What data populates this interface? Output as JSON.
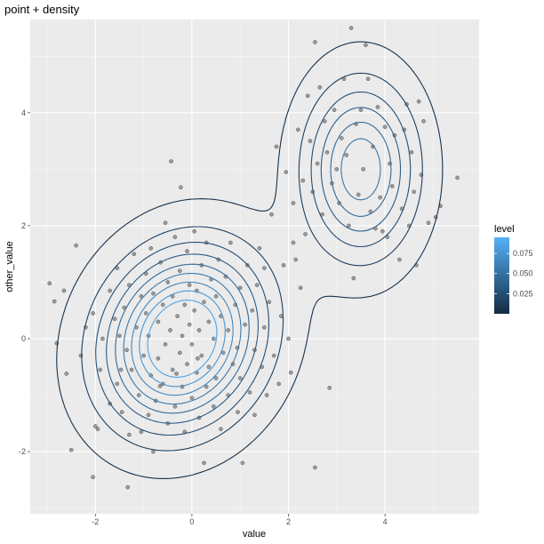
{
  "chart_data": {
    "type": "scatter",
    "title": "point + density",
    "xlabel": "value",
    "ylabel": "other_value",
    "xlim": [
      -3.35,
      5.95
    ],
    "ylim": [
      -3.1,
      5.65
    ],
    "xticks": [
      -2,
      0,
      2,
      4
    ],
    "yticks": [
      -2,
      0,
      2,
      4
    ],
    "tick_labels": {
      "x": [
        "-2",
        "0",
        "2",
        "4"
      ],
      "y": [
        "-2",
        "0",
        "2",
        "4"
      ]
    },
    "grid": true,
    "background": "#ebebeb",
    "point_color": "#7f7f7f",
    "legend": {
      "title": "level",
      "position": "right",
      "low_color": "#132b43",
      "high_color": "#56b1f7",
      "range": [
        0.0,
        0.095
      ],
      "ticks": [
        0.025,
        0.05,
        0.075
      ],
      "tick_labels": [
        "0.025",
        "0.050",
        "0.075"
      ]
    },
    "series": [
      {
        "type": "points",
        "points": [
          [
            -2.95,
            0.98
          ],
          [
            -2.85,
            0.66
          ],
          [
            -2.8,
            -0.08
          ],
          [
            -2.65,
            0.85
          ],
          [
            -2.6,
            -0.62
          ],
          [
            -2.4,
            1.65
          ],
          [
            -2.5,
            -1.97
          ],
          [
            -2.05,
            -2.45
          ],
          [
            -2.0,
            -1.55
          ],
          [
            -1.95,
            -1.6
          ],
          [
            -2.3,
            -0.3
          ],
          [
            -2.2,
            0.2
          ],
          [
            -2.05,
            0.45
          ],
          [
            -1.9,
            -0.55
          ],
          [
            -1.85,
            0.0
          ],
          [
            -1.7,
            0.85
          ],
          [
            -1.7,
            -1.15
          ],
          [
            -1.6,
            0.35
          ],
          [
            -1.55,
            -0.8
          ],
          [
            -1.55,
            1.25
          ],
          [
            -1.5,
            0.05
          ],
          [
            -1.45,
            -1.3
          ],
          [
            -1.4,
            0.55
          ],
          [
            -1.35,
            -0.2
          ],
          [
            -1.3,
            -1.7
          ],
          [
            -1.3,
            0.95
          ],
          [
            -1.25,
            -0.55
          ],
          [
            -1.2,
            1.5
          ],
          [
            -1.15,
            0.2
          ],
          [
            -1.1,
            -1.0
          ],
          [
            -1.05,
            0.75
          ],
          [
            -1.05,
            -1.65
          ],
          [
            -1.0,
            -0.3
          ],
          [
            -0.95,
            1.15
          ],
          [
            -0.95,
            0.45
          ],
          [
            -0.9,
            -1.35
          ],
          [
            -0.9,
            0.05
          ],
          [
            -0.85,
            1.6
          ],
          [
            -0.85,
            -0.65
          ],
          [
            -0.8,
            0.8
          ],
          [
            -0.8,
            -2.0
          ],
          [
            -0.75,
            -1.1
          ],
          [
            -0.7,
            0.3
          ],
          [
            -0.7,
            -0.35
          ],
          [
            -0.65,
            1.35
          ],
          [
            -0.6,
            -0.8
          ],
          [
            -0.6,
            0.6
          ],
          [
            -0.55,
            -0.1
          ],
          [
            -0.55,
            2.05
          ],
          [
            -0.5,
            1.0
          ],
          [
            -0.5,
            -1.5
          ],
          [
            -0.45,
            0.15
          ],
          [
            -0.4,
            -0.55
          ],
          [
            -0.4,
            0.75
          ],
          [
            -0.35,
            1.8
          ],
          [
            -0.35,
            -1.2
          ],
          [
            -0.3,
            0.4
          ],
          [
            -0.25,
            -0.25
          ],
          [
            -0.25,
            1.2
          ],
          [
            -0.2,
            -0.85
          ],
          [
            -0.2,
            0.05
          ],
          [
            -0.15,
            0.6
          ],
          [
            -0.15,
            -1.65
          ],
          [
            -0.1,
            1.55
          ],
          [
            -0.1,
            -0.45
          ],
          [
            -0.05,
            0.25
          ],
          [
            -0.05,
            0.95
          ],
          [
            0.0,
            -1.05
          ],
          [
            0.0,
            -0.1
          ],
          [
            0.05,
            0.5
          ],
          [
            0.05,
            1.9
          ],
          [
            0.1,
            -0.6
          ],
          [
            0.1,
            0.85
          ],
          [
            0.15,
            -1.4
          ],
          [
            0.15,
            0.15
          ],
          [
            0.2,
            1.3
          ],
          [
            0.2,
            -0.3
          ],
          [
            0.25,
            0.65
          ],
          [
            0.25,
            -2.2
          ],
          [
            0.3,
            -0.85
          ],
          [
            0.3,
            1.7
          ],
          [
            0.35,
            0.3
          ],
          [
            0.35,
            -0.5
          ],
          [
            0.4,
            1.05
          ],
          [
            0.45,
            -1.2
          ],
          [
            0.45,
            0.0
          ],
          [
            0.5,
            0.75
          ],
          [
            0.5,
            -0.7
          ],
          [
            0.55,
            1.4
          ],
          [
            0.6,
            -1.6
          ],
          [
            0.6,
            0.4
          ],
          [
            0.65,
            -0.25
          ],
          [
            0.7,
            1.1
          ],
          [
            0.75,
            -1.0
          ],
          [
            0.75,
            0.15
          ],
          [
            0.8,
            1.7
          ],
          [
            0.85,
            -0.45
          ],
          [
            0.9,
            0.6
          ],
          [
            0.95,
            -1.3
          ],
          [
            1.0,
            0.9
          ],
          [
            1.0,
            -0.7
          ],
          [
            1.05,
            -2.2
          ],
          [
            1.1,
            0.25
          ],
          [
            1.15,
            1.3
          ],
          [
            1.2,
            -0.95
          ],
          [
            1.25,
            0.5
          ],
          [
            1.3,
            -1.35
          ],
          [
            1.3,
            -0.2
          ],
          [
            1.35,
            0.95
          ],
          [
            1.4,
            1.6
          ],
          [
            1.45,
            -0.5
          ],
          [
            1.5,
            0.2
          ],
          [
            1.5,
            1.25
          ],
          [
            1.55,
            -1.0
          ],
          [
            1.6,
            0.65
          ],
          [
            1.65,
            2.2
          ],
          [
            1.7,
            -0.3
          ],
          [
            1.75,
            3.4
          ],
          [
            1.8,
            -0.8
          ],
          [
            1.85,
            0.4
          ],
          [
            1.9,
            1.3
          ],
          [
            1.95,
            2.95
          ],
          [
            2.0,
            0.0
          ],
          [
            2.05,
            -0.6
          ],
          [
            2.1,
            2.4
          ],
          [
            2.15,
            1.4
          ],
          [
            2.2,
            3.7
          ],
          [
            2.25,
            0.9
          ],
          [
            2.3,
            2.8
          ],
          [
            2.35,
            1.85
          ],
          [
            2.4,
            4.3
          ],
          [
            2.45,
            3.5
          ],
          [
            2.5,
            2.6
          ],
          [
            2.55,
            -2.28
          ],
          [
            2.6,
            3.1
          ],
          [
            2.65,
            4.45
          ],
          [
            2.7,
            2.2
          ],
          [
            2.75,
            3.85
          ],
          [
            2.8,
            3.3
          ],
          [
            2.85,
            -0.87
          ],
          [
            2.9,
            2.75
          ],
          [
            2.95,
            4.05
          ],
          [
            3.0,
            3.0
          ],
          [
            3.05,
            2.4
          ],
          [
            3.1,
            3.55
          ],
          [
            3.15,
            4.6
          ],
          [
            3.2,
            3.25
          ],
          [
            3.25,
            2.0
          ],
          [
            3.3,
            5.5
          ],
          [
            3.35,
            1.07
          ],
          [
            3.4,
            3.8
          ],
          [
            3.45,
            2.55
          ],
          [
            3.5,
            4.05
          ],
          [
            3.55,
            3.0
          ],
          [
            3.6,
            5.2
          ],
          [
            3.65,
            4.6
          ],
          [
            3.7,
            2.25
          ],
          [
            3.75,
            3.4
          ],
          [
            3.8,
            1.95
          ],
          [
            3.85,
            4.1
          ],
          [
            3.9,
            2.5
          ],
          [
            3.95,
            1.9
          ],
          [
            4.0,
            3.75
          ],
          [
            4.05,
            1.8
          ],
          [
            4.1,
            3.1
          ],
          [
            4.15,
            2.7
          ],
          [
            4.2,
            3.6
          ],
          [
            4.3,
            1.4
          ],
          [
            4.35,
            2.3
          ],
          [
            4.4,
            3.7
          ],
          [
            4.45,
            4.15
          ],
          [
            4.5,
            2.0
          ],
          [
            4.55,
            3.3
          ],
          [
            4.6,
            2.6
          ],
          [
            4.65,
            1.3
          ],
          [
            4.7,
            4.2
          ],
          [
            4.75,
            2.9
          ],
          [
            4.8,
            3.85
          ],
          [
            4.9,
            2.05
          ],
          [
            5.05,
            2.15
          ],
          [
            5.15,
            2.35
          ],
          [
            5.5,
            2.85
          ],
          [
            2.55,
            5.25
          ],
          [
            2.1,
            1.7
          ],
          [
            -1.33,
            -2.63
          ],
          [
            -1.47,
            -0.55
          ],
          [
            -0.66,
            -0.84
          ],
          [
            0.94,
            -0.16
          ],
          [
            -0.23,
            2.68
          ],
          [
            -0.43,
            3.14
          ],
          [
            -0.32,
            -0.62
          ],
          [
            0.12,
            -0.35
          ]
        ]
      }
    ],
    "density": {
      "components": [
        {
          "w": 0.7,
          "mx": -0.2,
          "my": 0.0,
          "sx": 1.05,
          "sy": 1.0,
          "rho": 0.15
        },
        {
          "w": 0.3,
          "mx": 3.5,
          "my": 3.0,
          "sx": 0.75,
          "sy": 1.0,
          "rho": 0.0
        }
      ],
      "levels": [
        0.005,
        0.015,
        0.025,
        0.035,
        0.045,
        0.055,
        0.065,
        0.075,
        0.085
      ]
    }
  }
}
